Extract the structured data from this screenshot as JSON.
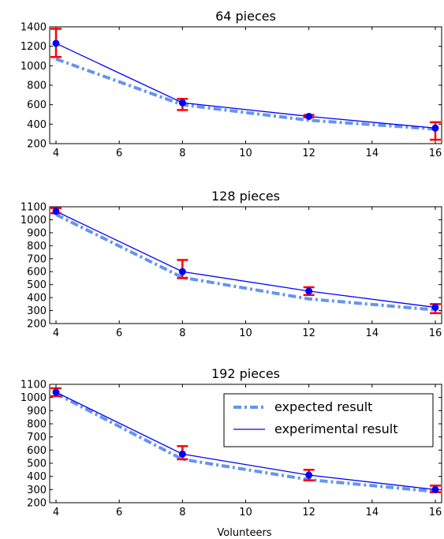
{
  "colors": {
    "expected": "#6495ed",
    "experimental": "#0000ff",
    "errorbar": "#ff0000",
    "marker": "#0000ff",
    "axes": "#000000",
    "background": "#ffffff"
  },
  "legend": {
    "expected_label": "expected result",
    "experimental_label": "experimental result",
    "placement": "upper-right of bottom panel"
  },
  "xlabel": "Volunteers",
  "chart_data": [
    {
      "type": "line",
      "title": "64 pieces",
      "xlabel": "",
      "ylabel": "",
      "x": [
        4,
        8,
        12,
        16
      ],
      "xlim": [
        3.8,
        16.2
      ],
      "xticks": [
        4,
        6,
        8,
        10,
        12,
        14,
        16
      ],
      "ylim": [
        200,
        1400
      ],
      "yticks": [
        200,
        400,
        600,
        800,
        1000,
        1200,
        1400
      ],
      "series": [
        {
          "name": "expected result",
          "values": [
            1070,
            600,
            440,
            350
          ]
        },
        {
          "name": "experimental result",
          "values": [
            1230,
            620,
            480,
            360
          ],
          "err_low": [
            1090,
            545,
            470,
            240
          ],
          "err_high": [
            1380,
            660,
            495,
            420
          ]
        }
      ],
      "grid": false
    },
    {
      "type": "line",
      "title": "128 pieces",
      "xlabel": "",
      "ylabel": "",
      "x": [
        4,
        8,
        12,
        16
      ],
      "xlim": [
        3.8,
        16.2
      ],
      "xticks": [
        4,
        6,
        8,
        10,
        12,
        14,
        16
      ],
      "ylim": [
        200,
        1100
      ],
      "yticks": [
        200,
        300,
        400,
        500,
        600,
        700,
        800,
        900,
        1000,
        1100
      ],
      "series": [
        {
          "name": "expected result",
          "values": [
            1040,
            555,
            390,
            305
          ]
        },
        {
          "name": "experimental result",
          "values": [
            1065,
            600,
            450,
            325
          ],
          "err_low": [
            1050,
            550,
            420,
            280
          ],
          "err_high": [
            1090,
            690,
            480,
            350
          ]
        }
      ],
      "grid": false
    },
    {
      "type": "line",
      "title": "192 pieces",
      "xlabel": "Volunteers",
      "ylabel": "",
      "x": [
        4,
        8,
        12,
        16
      ],
      "xlim": [
        3.8,
        16.2
      ],
      "xticks": [
        4,
        6,
        8,
        10,
        12,
        14,
        16
      ],
      "ylim": [
        200,
        1100
      ],
      "yticks": [
        200,
        300,
        400,
        500,
        600,
        700,
        800,
        900,
        1000,
        1100
      ],
      "series": [
        {
          "name": "expected result",
          "values": [
            1030,
            530,
            375,
            285
          ]
        },
        {
          "name": "experimental result",
          "values": [
            1040,
            570,
            410,
            300
          ],
          "err_low": [
            1010,
            530,
            370,
            280
          ],
          "err_high": [
            1070,
            630,
            450,
            330
          ]
        }
      ],
      "grid": false,
      "legend": {
        "position": "upper-right",
        "entries": [
          "expected result",
          "experimental result"
        ]
      }
    }
  ]
}
